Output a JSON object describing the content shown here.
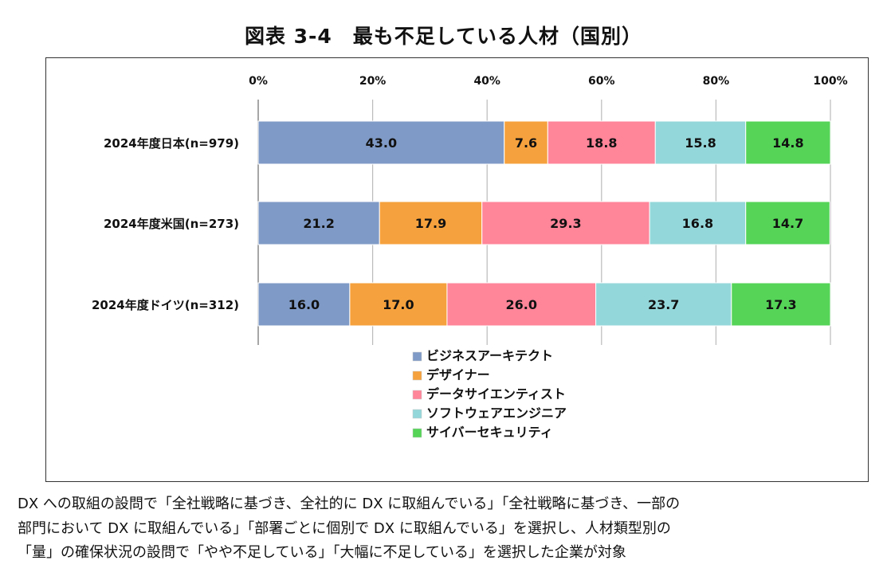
{
  "title": "図表 3-4　最も不足している人材（国別）",
  "chart_data": {
    "type": "bar",
    "orientation": "horizontal",
    "stacked": true,
    "percent": true,
    "categories": [
      "2024年度日本(n=979)",
      "2024年度米国(n=273)",
      "2024年度ドイツ(n=312)"
    ],
    "x_ticks": [
      "0%",
      "20%",
      "40%",
      "60%",
      "80%",
      "100%"
    ],
    "xlim": [
      0,
      100
    ],
    "grid": true,
    "legend_position": "bottom",
    "series": [
      {
        "name": "ビジネスアーキテクト",
        "color": "#7F9AC6",
        "values": [
          43.0,
          21.2,
          16.0
        ]
      },
      {
        "name": "デザイナー",
        "color": "#F5A13D",
        "values": [
          7.6,
          17.9,
          17.0
        ]
      },
      {
        "name": "データサイエンティスト",
        "color": "#FF8599",
        "values": [
          18.8,
          29.3,
          26.0
        ]
      },
      {
        "name": "ソフトウェアエンジニア",
        "color": "#94D7DA",
        "values": [
          15.8,
          16.8,
          23.7
        ]
      },
      {
        "name": "サイバーセキュリティ",
        "color": "#55D457",
        "values": [
          14.8,
          14.7,
          17.3
        ]
      }
    ]
  },
  "note": [
    "DX への取組の設問で「全社戦略に基づき、全社的に DX に取組んでいる」「全社戦略に基づき、一部の",
    "部門において DX に取組んでいる」「部署ごとに個別で DX に取組んでいる」を選択し、人材類型別の",
    "「量」の確保状況の設問で「やや不足している」「大幅に不足している」を選択した企業が対象"
  ]
}
